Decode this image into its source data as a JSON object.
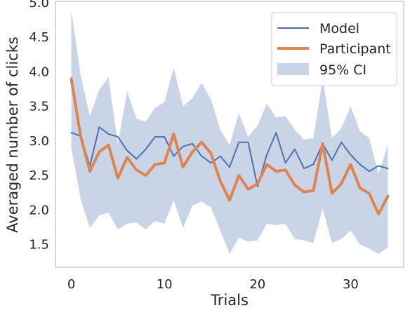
{
  "chart_data": {
    "type": "line",
    "title": "",
    "xlabel": "Trials",
    "ylabel": "Averaged number of clicks",
    "xlim": [
      -1.7,
      35.7
    ],
    "ylim": [
      1.17,
      5.02
    ],
    "xticks": [
      0,
      10,
      20,
      30
    ],
    "xtick_labels": [
      "0",
      "10",
      "20",
      "30"
    ],
    "yticks": [
      1.5,
      2.0,
      2.5,
      3.0,
      3.5,
      4.0,
      4.5,
      5.0
    ],
    "ytick_labels": [
      "1.5",
      "2.0",
      "2.5",
      "3.0",
      "3.5",
      "4.0",
      "4.5",
      "5.0"
    ],
    "grid": false,
    "legend_position": "top-right",
    "x": [
      0,
      1,
      2,
      3,
      4,
      5,
      6,
      7,
      8,
      9,
      10,
      11,
      12,
      13,
      14,
      15,
      16,
      17,
      18,
      19,
      20,
      21,
      22,
      23,
      24,
      25,
      26,
      27,
      28,
      29,
      30,
      31,
      32,
      33,
      34
    ],
    "series": [
      {
        "name": "Model",
        "color": "#4c72b0",
        "values": [
          3.12,
          3.07,
          2.64,
          3.2,
          3.1,
          3.06,
          2.86,
          2.74,
          2.88,
          3.06,
          3.06,
          2.78,
          2.92,
          2.96,
          2.78,
          2.68,
          2.78,
          2.62,
          2.98,
          2.98,
          2.34,
          2.8,
          3.12,
          2.68,
          2.88,
          2.6,
          2.66,
          2.96,
          2.72,
          2.98,
          2.8,
          2.66,
          2.56,
          2.64,
          2.6
        ]
      },
      {
        "name": "Participant",
        "color": "#dd8452",
        "values": [
          3.9,
          3.07,
          2.56,
          2.84,
          2.94,
          2.46,
          2.76,
          2.58,
          2.5,
          2.66,
          2.68,
          3.1,
          2.62,
          2.84,
          2.98,
          2.82,
          2.42,
          2.14,
          2.5,
          2.3,
          2.38,
          2.66,
          2.56,
          2.58,
          2.36,
          2.26,
          2.28,
          2.96,
          2.24,
          2.38,
          2.66,
          2.32,
          2.24,
          1.94,
          2.2
        ]
      }
    ],
    "ci_band": {
      "name": "95% CI",
      "color": "#4c72b0",
      "opacity": 0.3,
      "upper": [
        4.9,
        3.95,
        3.36,
        3.74,
        3.92,
        2.96,
        3.72,
        3.32,
        3.28,
        3.48,
        3.56,
        4.06,
        3.5,
        3.62,
        3.84,
        3.6,
        3.16,
        2.94,
        3.4,
        3.06,
        3.22,
        3.54,
        3.34,
        3.36,
        3.16,
        3.02,
        3.04,
        3.9,
        3.04,
        3.18,
        3.5,
        3.14,
        3.04,
        2.52,
        2.94
      ],
      "lower": [
        2.9,
        2.16,
        1.74,
        1.92,
        1.96,
        1.72,
        1.8,
        1.82,
        1.72,
        1.84,
        1.8,
        2.14,
        1.74,
        2.06,
        2.12,
        2.04,
        1.7,
        1.36,
        1.6,
        1.54,
        1.56,
        1.8,
        1.78,
        1.8,
        1.58,
        1.56,
        1.52,
        2.02,
        1.52,
        1.58,
        1.7,
        1.5,
        1.44,
        1.36,
        1.46
      ]
    }
  }
}
